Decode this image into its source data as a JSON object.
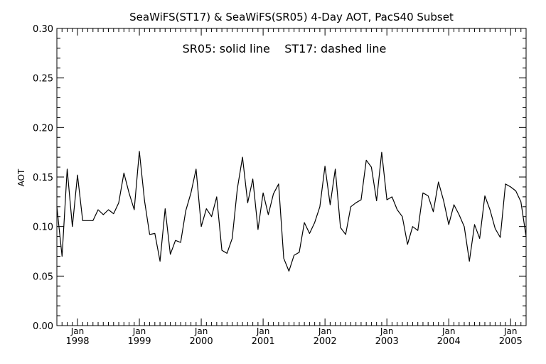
{
  "chart_data": {
    "type": "line",
    "title": "SeaWiFS(ST17) & SeaWiFS(SR05) 4-Day AOT, PacS40 Subset",
    "annotation": "SR05: solid line    ST17: dashed line",
    "ylabel": "AOT",
    "xlabel": "",
    "ylim": [
      0.0,
      0.3
    ],
    "yticks": [
      "0.00",
      "0.05",
      "0.10",
      "0.15",
      "0.20",
      "0.25",
      "0.30"
    ],
    "xlim": [
      "1997-09",
      "2005-04"
    ],
    "xticks": [
      {
        "month": "Jan",
        "year": "1998",
        "date": "1998-01"
      },
      {
        "month": "Jan",
        "year": "1999",
        "date": "1999-01"
      },
      {
        "month": "Jan",
        "year": "2000",
        "date": "2000-01"
      },
      {
        "month": "Jan",
        "year": "2001",
        "date": "2001-01"
      },
      {
        "month": "Jan",
        "year": "2002",
        "date": "2002-01"
      },
      {
        "month": "Jan",
        "year": "2003",
        "date": "2003-01"
      },
      {
        "month": "Jan",
        "year": "2004",
        "date": "2004-01"
      },
      {
        "month": "Jan",
        "year": "2005",
        "date": "2005-01"
      }
    ],
    "grid": false,
    "series": [
      {
        "name": "SR05",
        "style": "solid",
        "color": "#000000",
        "x": [
          "1997-09",
          "1997-10",
          "1997-11",
          "1997-12",
          "1998-01",
          "1998-02",
          "1998-03",
          "1998-04",
          "1998-05",
          "1998-06",
          "1998-07",
          "1998-08",
          "1998-09",
          "1998-10",
          "1998-11",
          "1998-12",
          "1999-01",
          "1999-02",
          "1999-03",
          "1999-04",
          "1999-05",
          "1999-06",
          "1999-07",
          "1999-08",
          "1999-09",
          "1999-10",
          "1999-11",
          "1999-12",
          "2000-01",
          "2000-02",
          "2000-03",
          "2000-04",
          "2000-05",
          "2000-06",
          "2000-07",
          "2000-08",
          "2000-09",
          "2000-10",
          "2000-11",
          "2000-12",
          "2001-01",
          "2001-02",
          "2001-03",
          "2001-04",
          "2001-05",
          "2001-06",
          "2001-07",
          "2001-08",
          "2001-09",
          "2001-10",
          "2001-11",
          "2001-12",
          "2002-01",
          "2002-02",
          "2002-03",
          "2002-04",
          "2002-05",
          "2002-06",
          "2002-07",
          "2002-08",
          "2002-09",
          "2002-10",
          "2002-11",
          "2002-12",
          "2003-01",
          "2003-02",
          "2003-03",
          "2003-04",
          "2003-05",
          "2003-06",
          "2003-07",
          "2003-08",
          "2003-09",
          "2003-10",
          "2003-11",
          "2003-12",
          "2004-01",
          "2004-02",
          "2004-03",
          "2004-04",
          "2004-05",
          "2004-06",
          "2004-07",
          "2004-08",
          "2004-09",
          "2004-10",
          "2004-11",
          "2004-12",
          "2005-01",
          "2005-02",
          "2005-03",
          "2005-04"
        ],
        "y": [
          0.12,
          0.07,
          0.158,
          0.1,
          0.152,
          0.106,
          0.106,
          0.106,
          0.117,
          0.112,
          0.117,
          0.113,
          0.124,
          0.154,
          0.134,
          0.117,
          0.176,
          0.126,
          0.092,
          0.093,
          0.065,
          0.118,
          0.072,
          0.086,
          0.084,
          0.116,
          0.134,
          0.158,
          0.1,
          0.118,
          0.11,
          0.13,
          0.076,
          0.073,
          0.088,
          0.138,
          0.17,
          0.124,
          0.148,
          0.097,
          0.134,
          0.112,
          0.133,
          0.143,
          0.068,
          0.055,
          0.071,
          0.074,
          0.104,
          0.093,
          0.104,
          0.12,
          0.161,
          0.122,
          0.158,
          0.099,
          0.092,
          0.12,
          0.124,
          0.127,
          0.167,
          0.16,
          0.126,
          0.175,
          0.127,
          0.13,
          0.117,
          0.11,
          0.082,
          0.1,
          0.096,
          0.134,
          0.131,
          0.115,
          0.145,
          0.126,
          0.102,
          0.122,
          0.112,
          0.1,
          0.065,
          0.102,
          0.088,
          0.131,
          0.117,
          0.098,
          0.089,
          0.143,
          0.14,
          0.136,
          0.125,
          0.09
        ]
      }
    ]
  }
}
